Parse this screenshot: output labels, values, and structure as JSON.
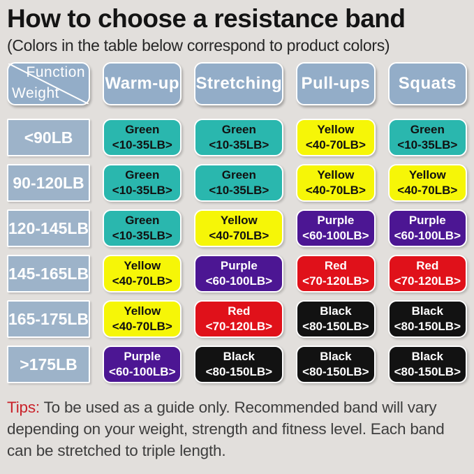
{
  "title": "How to choose a resistance band",
  "subtitle": "(Colors in the table below correspond to product colors)",
  "corner": {
    "top": "Function",
    "bottom": "Weight"
  },
  "colors": {
    "background": "#e2dfdc",
    "header_blue": "#93adc8",
    "weight_blue": "#9db3c9",
    "tips_red": "#c9232b"
  },
  "band_styles": {
    "teal": {
      "bg": "#2ab7ae",
      "fg": "#111111"
    },
    "yellow": {
      "bg": "#f6f607",
      "fg": "#111111"
    },
    "purple": {
      "bg": "#4c1693",
      "fg": "#ffffff"
    },
    "red": {
      "bg": "#e0111a",
      "fg": "#ffffff"
    },
    "black": {
      "bg": "#121212",
      "fg": "#ffffff"
    }
  },
  "chart_data": {
    "type": "table",
    "title": "How to choose a resistance band",
    "columns": [
      "Warm-up",
      "Stretching",
      "Pull-ups",
      "Squats"
    ],
    "rows": [
      {
        "weight": "<90LB",
        "cells": [
          {
            "label": "Green",
            "range": "<10-35LB>",
            "color": "teal"
          },
          {
            "label": "Green",
            "range": "<10-35LB>",
            "color": "teal"
          },
          {
            "label": "Yellow",
            "range": "<40-70LB>",
            "color": "yellow"
          },
          {
            "label": "Green",
            "range": "<10-35LB>",
            "color": "teal"
          }
        ]
      },
      {
        "weight": "90-120LB",
        "cells": [
          {
            "label": "Green",
            "range": "<10-35LB>",
            "color": "teal"
          },
          {
            "label": "Green",
            "range": "<10-35LB>",
            "color": "teal"
          },
          {
            "label": "Yellow",
            "range": "<40-70LB>",
            "color": "yellow"
          },
          {
            "label": "Yellow",
            "range": "<40-70LB>",
            "color": "yellow"
          }
        ]
      },
      {
        "weight": "120-145LB",
        "cells": [
          {
            "label": "Green",
            "range": "<10-35LB>",
            "color": "teal"
          },
          {
            "label": "Yellow",
            "range": "<40-70LB>",
            "color": "yellow"
          },
          {
            "label": "Purple",
            "range": "<60-100LB>",
            "color": "purple"
          },
          {
            "label": "Purple",
            "range": "<60-100LB>",
            "color": "purple"
          }
        ]
      },
      {
        "weight": "145-165LB",
        "cells": [
          {
            "label": "Yellow",
            "range": "<40-70LB>",
            "color": "yellow"
          },
          {
            "label": "Purple",
            "range": "<60-100LB>",
            "color": "purple"
          },
          {
            "label": "Red",
            "range": "<70-120LB>",
            "color": "red"
          },
          {
            "label": "Red",
            "range": "<70-120LB>",
            "color": "red"
          }
        ]
      },
      {
        "weight": "165-175LB",
        "cells": [
          {
            "label": "Yellow",
            "range": "<40-70LB>",
            "color": "yellow"
          },
          {
            "label": "Red",
            "range": "<70-120LB>",
            "color": "red"
          },
          {
            "label": "Black",
            "range": "<80-150LB>",
            "color": "black"
          },
          {
            "label": "Black",
            "range": "<80-150LB>",
            "color": "black"
          }
        ]
      },
      {
        "weight": ">175LB",
        "cells": [
          {
            "label": "Purple",
            "range": "<60-100LB>",
            "color": "purple"
          },
          {
            "label": "Black",
            "range": "<80-150LB>",
            "color": "black"
          },
          {
            "label": "Black",
            "range": "<80-150LB>",
            "color": "black"
          },
          {
            "label": "Black",
            "range": "<80-150LB>",
            "color": "black"
          }
        ]
      }
    ]
  },
  "tips": {
    "label": "Tips:",
    "text": " To be used as a guide only. Recommended band will vary depending on your weight, strength and fitness level. Each band can be stretched to triple length."
  }
}
